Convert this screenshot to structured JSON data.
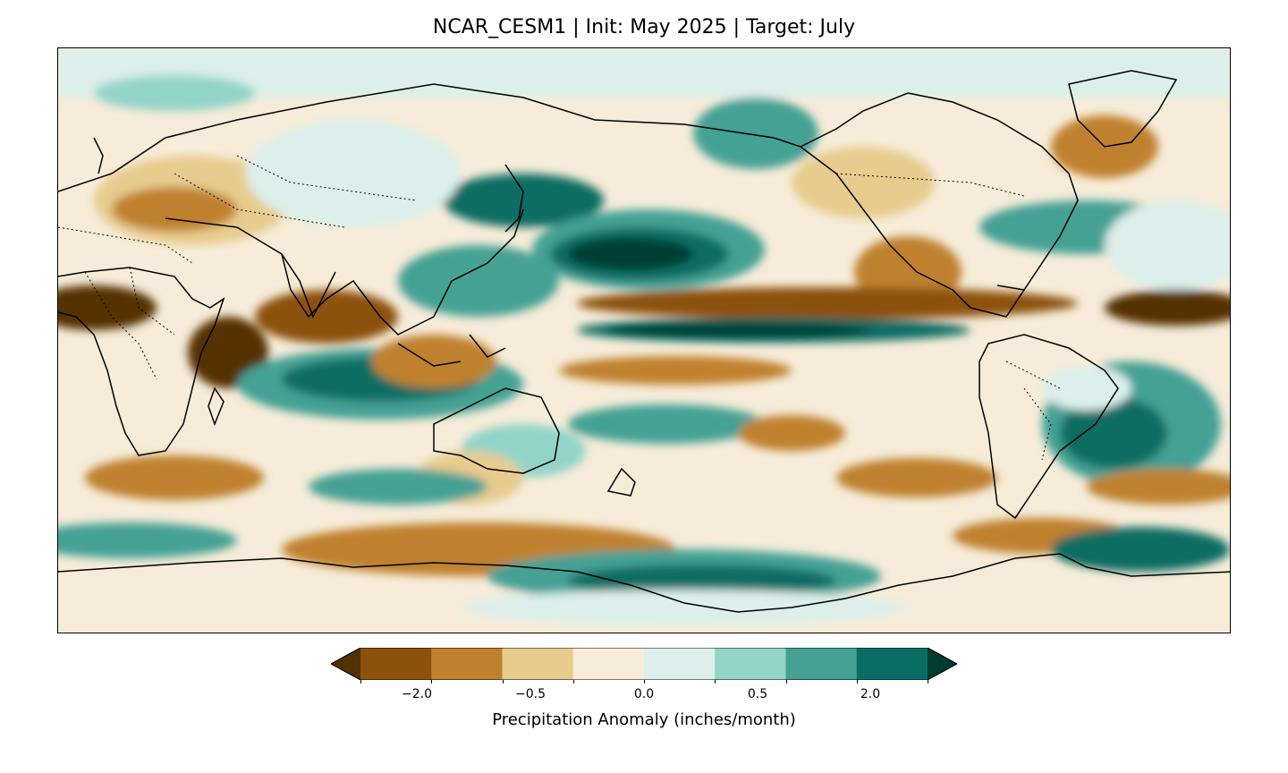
{
  "title": "NCAR_CESM1 | Init: May 2025 | Target: July",
  "colorbar": {
    "label": "Precipitation Anomaly (inches/month)",
    "extend": "both",
    "colors": [
      "#543005",
      "#8c510a",
      "#bf812d",
      "#e7cc8e",
      "#f6ecd9",
      "#dcefeb",
      "#93d4c8",
      "#44a194",
      "#0a6d63",
      "#003c30"
    ],
    "tick_labels": [
      "−2.0",
      "−0.5",
      "0.0",
      "0.5",
      "2.0"
    ]
  },
  "map": {
    "projection": "PlateCarree",
    "central_longitude": 180,
    "land_outlines": "black",
    "country_borders": "dotted"
  }
}
